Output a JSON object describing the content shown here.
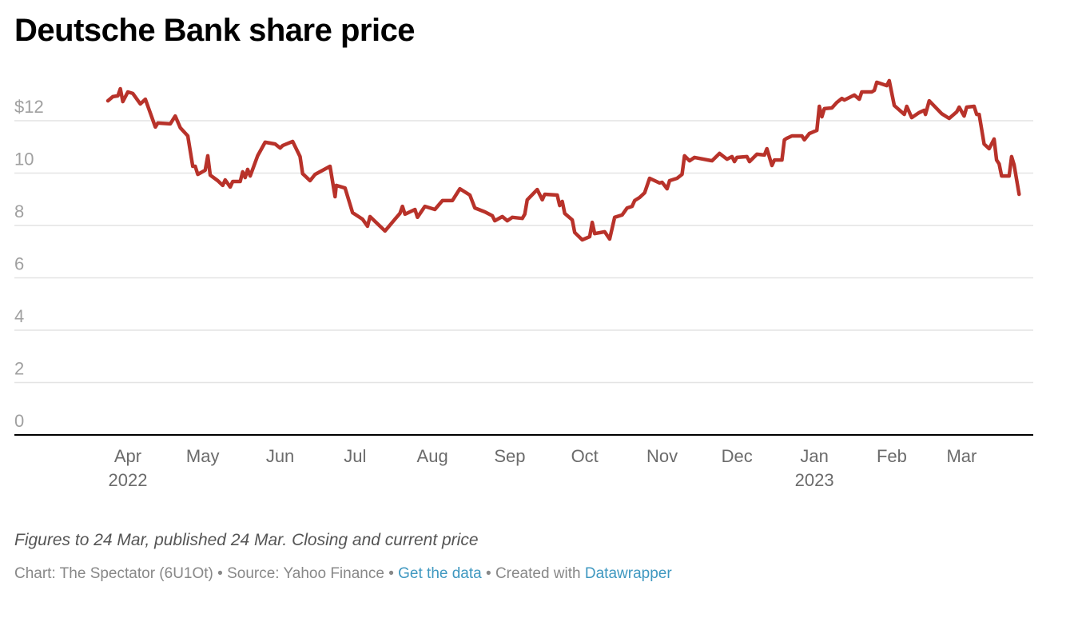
{
  "header": {
    "title": "Deutsche Bank share price"
  },
  "footer": {
    "notes": "Figures to 24 Mar, published 24 Mar. Closing and current price",
    "chart_credit": "Chart: The Spectator (6U1Ot)",
    "separator": " • ",
    "source": "Source: Yahoo Finance",
    "get_data_link": "Get the data",
    "created_with": "Created with ",
    "datawrapper_link": "Datawrapper"
  },
  "colors": {
    "line": "#b8322a",
    "grid": "#e4e4e4",
    "axis": "#000000",
    "link": "#3f98c0"
  },
  "chart_data": {
    "type": "line",
    "title": "Deutsche Bank share price",
    "xlabel": "",
    "ylabel": "",
    "x_unit": "days since 24 Mar 2022",
    "ylim": [
      0,
      13.6
    ],
    "grid": true,
    "y_ticks": [
      {
        "value": 12,
        "label": "$12"
      },
      {
        "value": 10,
        "label": "10"
      },
      {
        "value": 8,
        "label": "8"
      },
      {
        "value": 6,
        "label": "6"
      },
      {
        "value": 4,
        "label": "4"
      },
      {
        "value": 2,
        "label": "2"
      },
      {
        "value": 0,
        "label": "0"
      }
    ],
    "x_ticks": [
      {
        "day": 8,
        "label": "Apr",
        "sublabel": "2022"
      },
      {
        "day": 38,
        "label": "May"
      },
      {
        "day": 69,
        "label": "Jun"
      },
      {
        "day": 99,
        "label": "Jul"
      },
      {
        "day": 130,
        "label": "Aug"
      },
      {
        "day": 161,
        "label": "Sep"
      },
      {
        "day": 191,
        "label": "Oct"
      },
      {
        "day": 222,
        "label": "Nov"
      },
      {
        "day": 252,
        "label": "Dec"
      },
      {
        "day": 283,
        "label": "Jan",
        "sublabel": "2023"
      },
      {
        "day": 314,
        "label": "Feb"
      },
      {
        "day": 342,
        "label": "Mar"
      }
    ],
    "x_range": [
      0,
      370
    ],
    "series": [
      {
        "name": "Deutsche Bank share price",
        "x": [
          0,
          2,
          4,
          5,
          6,
          8,
          10,
          13,
          15,
          19,
          20,
          25,
          27,
          29,
          32,
          34,
          35,
          36,
          39,
          40,
          41,
          44,
          46,
          47,
          49,
          50,
          53,
          54,
          55,
          56,
          57,
          60,
          63,
          67,
          69,
          70,
          74,
          77,
          78,
          81,
          83,
          89,
          91,
          91.5,
          95,
          98,
          102,
          104,
          105,
          111,
          115,
          117,
          118,
          119,
          123,
          124,
          127,
          131,
          134,
          138,
          139,
          141,
          145,
          147,
          151,
          154,
          155,
          158,
          160,
          162,
          166,
          167,
          168,
          172,
          174,
          175,
          180,
          181,
          182,
          183,
          186,
          187,
          190,
          193,
          194,
          195,
          199,
          201,
          203,
          206,
          208,
          210,
          211,
          213,
          215,
          217,
          221,
          222,
          224,
          225,
          228,
          230,
          231,
          233,
          235,
          242,
          245,
          248,
          250,
          251,
          252,
          256,
          257,
          260,
          263,
          264,
          266,
          267,
          270,
          271,
          272,
          274,
          278,
          279,
          281,
          284,
          285,
          286,
          287,
          290,
          292,
          294,
          295,
          299,
          301,
          302,
          306,
          307,
          308,
          312,
          313,
          315,
          319,
          320,
          322,
          325,
          327,
          327.5,
          329,
          334,
          337,
          340,
          341,
          343,
          344,
          347,
          348,
          349,
          351,
          353,
          355,
          356,
          357,
          358,
          361,
          362,
          363,
          365
        ],
        "y": [
          12.76,
          12.92,
          12.95,
          13.22,
          12.73,
          13.1,
          13.04,
          12.64,
          12.82,
          11.76,
          11.91,
          11.88,
          12.18,
          11.73,
          11.42,
          10.26,
          10.26,
          9.95,
          10.11,
          10.66,
          9.92,
          9.71,
          9.53,
          9.74,
          9.47,
          9.68,
          9.68,
          10.05,
          9.83,
          10.14,
          9.89,
          10.66,
          11.18,
          11.11,
          10.96,
          11.05,
          11.21,
          10.63,
          9.98,
          9.71,
          9.95,
          10.26,
          9.1,
          9.53,
          9.43,
          8.49,
          8.24,
          7.97,
          8.34,
          7.79,
          8.24,
          8.46,
          8.73,
          8.43,
          8.61,
          8.31,
          8.73,
          8.61,
          8.95,
          8.95,
          9.1,
          9.4,
          9.16,
          8.67,
          8.52,
          8.37,
          8.18,
          8.34,
          8.18,
          8.31,
          8.27,
          8.43,
          8.98,
          9.37,
          8.98,
          9.19,
          9.16,
          8.76,
          8.92,
          8.46,
          8.21,
          7.73,
          7.45,
          7.57,
          8.12,
          7.69,
          7.76,
          7.48,
          8.31,
          8.4,
          8.67,
          8.73,
          8.95,
          9.07,
          9.25,
          9.8,
          9.62,
          9.65,
          9.4,
          9.71,
          9.8,
          9.95,
          10.66,
          10.47,
          10.6,
          10.47,
          10.75,
          10.53,
          10.63,
          10.44,
          10.6,
          10.63,
          10.44,
          10.72,
          10.69,
          10.93,
          10.29,
          10.5,
          10.5,
          11.27,
          11.33,
          11.42,
          11.42,
          11.27,
          11.51,
          11.63,
          12.55,
          12.15,
          12.46,
          12.49,
          12.7,
          12.85,
          12.79,
          12.98,
          12.82,
          13.1,
          13.1,
          13.16,
          13.47,
          13.34,
          13.53,
          12.58,
          12.24,
          12.55,
          12.12,
          12.31,
          12.4,
          12.24,
          12.76,
          12.27,
          12.09,
          12.34,
          12.52,
          12.18,
          12.52,
          12.55,
          12.24,
          12.24,
          11.11,
          10.93,
          11.3,
          10.5,
          10.35,
          9.89,
          9.89,
          10.63,
          10.32,
          9.19
        ]
      }
    ]
  }
}
